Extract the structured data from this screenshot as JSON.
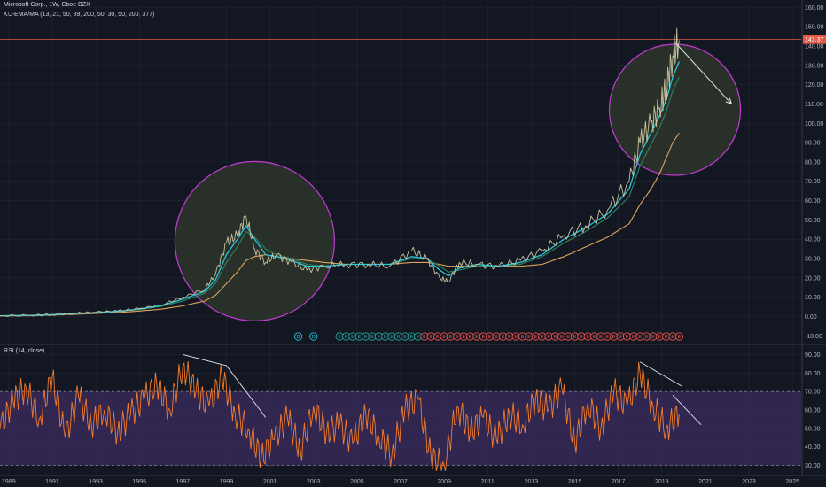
{
  "header": {
    "symbol_line": "Microsoft Corp., 1W, Cboe BZX",
    "indicator_line": "KC-EMA/MA (13, 21, 50, 89, 200, 50, 30, 50, 200, 377)",
    "rsi_label": "RSI (14, close)"
  },
  "colors": {
    "background": "#131722",
    "price": "#c7c2a0",
    "ema_fast": "#26c6da",
    "ema_mid": "#2e7d5b",
    "ma_slow": "#e0a35a",
    "circle_stroke": "#c23bd4",
    "circle_fill": "#3a4530",
    "rsi_line": "#f57c2a",
    "rsi_band": "#3a2a5c",
    "price_line": "#e05a45",
    "arrow": "#e8e8e8"
  },
  "chart_data": [
    {
      "type": "line",
      "panel": "price",
      "title": "Microsoft Corp., 1W, Cboe BZX",
      "last_price_label": "143.37",
      "last_price": 143.37,
      "ylim": [
        -14,
        162
      ],
      "y_ticks": [
        "160.00",
        "150.00",
        "140.00",
        "130.00",
        "120.00",
        "110.00",
        "100.00",
        "90.00",
        "80.00",
        "70.00",
        "60.00",
        "50.00",
        "40.00",
        "30.00",
        "20.00",
        "10.00",
        "0.00",
        "-10.00"
      ],
      "x": [
        1988.6,
        1990,
        1991,
        1992,
        1993,
        1994,
        1995,
        1996,
        1997,
        1998,
        1998.5,
        1999,
        1999.5,
        1999.9,
        2000.3,
        2000.8,
        2001.3,
        2002,
        2002.7,
        2003.5,
        2004.5,
        2005.5,
        2006.5,
        2007.5,
        2008.2,
        2008.8,
        2009.2,
        2009.7,
        2010.5,
        2011.5,
        2012.5,
        2013.5,
        2014.5,
        2015.5,
        2016.5,
        2017.5,
        2018,
        2018.5,
        2018.9,
        2019.2,
        2019.5,
        2019.8
      ],
      "series": [
        {
          "role": "price",
          "values": [
            0.4,
            0.6,
            1,
            1.6,
            2.2,
            2.8,
            4,
            6,
            10,
            14,
            22,
            38,
            42,
            52,
            35,
            28,
            32,
            28,
            24,
            26,
            27,
            27,
            26,
            34,
            30,
            20,
            18,
            28,
            27,
            26,
            29,
            34,
            42,
            47,
            55,
            70,
            90,
            100,
            108,
            118,
            135,
            143
          ]
        },
        {
          "role": "ema_fast",
          "values": [
            0.4,
            0.6,
            1,
            1.5,
            2.1,
            2.7,
            3.8,
            5.6,
            9,
            13,
            19,
            32,
            40,
            47,
            40,
            32,
            31,
            29,
            26,
            26,
            27,
            27,
            27,
            31,
            30,
            24,
            21,
            25,
            27,
            26,
            28,
            32,
            40,
            46,
            53,
            66,
            84,
            95,
            104,
            112,
            124,
            132
          ]
        },
        {
          "role": "ema_mid",
          "values": [
            0.4,
            0.5,
            0.9,
            1.4,
            2,
            2.6,
            3.6,
            5.2,
            8,
            12,
            17,
            28,
            36,
            44,
            41,
            35,
            32,
            30,
            27,
            26,
            27,
            27,
            27,
            30,
            30,
            26,
            23,
            24,
            26,
            26,
            27,
            31,
            38,
            44,
            51,
            62,
            78,
            89,
            98,
            106,
            117,
            124
          ]
        },
        {
          "role": "ma_slow",
          "values": [
            0.3,
            0.4,
            0.7,
            1.1,
            1.6,
            2.1,
            2.8,
            3.8,
            5.5,
            8,
            11,
            17,
            23,
            29,
            31,
            32,
            31,
            30,
            29,
            28,
            27,
            27,
            27,
            28,
            28,
            27,
            26,
            26,
            26,
            26,
            26,
            27,
            31,
            36,
            41,
            48,
            58,
            66,
            74,
            82,
            90,
            95
          ]
        }
      ],
      "annotations": [
        {
          "type": "circle",
          "center": [
            2000.3,
            39
          ],
          "label": ""
        },
        {
          "type": "circle",
          "center": [
            2019.6,
            107
          ],
          "label": ""
        },
        {
          "type": "arrow",
          "from": [
            2019.6,
            142
          ],
          "to": [
            2022.2,
            110
          ]
        }
      ],
      "event_markers": {
        "dividend_label": "D",
        "earnings_label": "E",
        "dividend_x": [
          2002.3,
          2003.0
        ],
        "teal_x": [
          2004.2,
          2004.5,
          2004.8,
          2005.1,
          2005.4,
          2005.7,
          2006.0,
          2006.3,
          2006.6,
          2006.9,
          2007.2,
          2007.5,
          2007.8
        ],
        "red_x": [
          2008.1,
          2008.4,
          2008.7,
          2009.0,
          2009.3,
          2009.6,
          2009.9,
          2010.2,
          2010.5,
          2010.8,
          2011.1,
          2011.4,
          2011.7,
          2012.0,
          2012.3,
          2012.6,
          2012.9,
          2013.2,
          2013.5,
          2013.8,
          2014.1,
          2014.4,
          2014.7,
          2015.0,
          2015.3,
          2015.6,
          2015.9,
          2016.2,
          2016.5,
          2016.8,
          2017.1,
          2017.4,
          2017.7,
          2018.0,
          2018.3,
          2018.6,
          2018.9,
          2019.2,
          2019.5,
          2019.8
        ]
      }
    },
    {
      "type": "line",
      "panel": "rsi",
      "title": "RSI (14, close)",
      "ylim": [
        25,
        95
      ],
      "y_ticks": [
        "90.00",
        "80.00",
        "70.00",
        "60.00",
        "50.00",
        "40.00",
        "30.00"
      ],
      "bands": [
        30,
        70
      ],
      "x": [
        1988.6,
        1989.2,
        1989.8,
        1990.4,
        1991,
        1991.6,
        1992.2,
        1992.8,
        1993.4,
        1994,
        1994.6,
        1995.2,
        1995.8,
        1996.4,
        1997,
        1997.6,
        1998.2,
        1998.8,
        1999.4,
        2000,
        2000.6,
        2001.2,
        2001.8,
        2002.4,
        2003,
        2003.6,
        2004.2,
        2004.8,
        2005.4,
        2006,
        2006.6,
        2007.2,
        2007.8,
        2008.4,
        2009,
        2009.6,
        2010.2,
        2010.8,
        2011.4,
        2012,
        2012.6,
        2013.2,
        2013.8,
        2014.4,
        2015,
        2015.6,
        2016.2,
        2016.8,
        2017.4,
        2018,
        2018.6,
        2019.2,
        2019.8
      ],
      "series": [
        {
          "role": "rsi",
          "values": [
            50,
            65,
            72,
            55,
            78,
            45,
            68,
            52,
            60,
            48,
            58,
            66,
            74,
            60,
            84,
            70,
            62,
            78,
            58,
            50,
            34,
            44,
            56,
            38,
            62,
            48,
            52,
            42,
            58,
            46,
            36,
            60,
            66,
            34,
            30,
            62,
            48,
            56,
            44,
            58,
            52,
            66,
            60,
            72,
            42,
            64,
            50,
            70,
            62,
            80,
            62,
            50,
            58
          ]
        }
      ],
      "annotations": [
        {
          "type": "trendline",
          "from": [
            1997.0,
            90
          ],
          "to": [
            1999.0,
            84
          ]
        },
        {
          "type": "trendline",
          "from": [
            1999.0,
            84
          ],
          "to": [
            2000.8,
            56
          ]
        },
        {
          "type": "trendline",
          "from": [
            2018.0,
            86
          ],
          "to": [
            2019.9,
            73
          ]
        },
        {
          "type": "trendline",
          "from": [
            2019.5,
            68
          ],
          "to": [
            2020.8,
            52
          ]
        }
      ]
    }
  ],
  "x_axis": {
    "labels": [
      "1989",
      "1991",
      "1993",
      "1995",
      "1997",
      "1999",
      "2001",
      "2003",
      "2005",
      "2007",
      "2009",
      "2011",
      "2013",
      "2015",
      "2017",
      "2019",
      "2021",
      "2023",
      "2025"
    ],
    "values": [
      1989,
      1991,
      1993,
      1995,
      1997,
      1999,
      2001,
      2003,
      2005,
      2007,
      2009,
      2011,
      2013,
      2015,
      2017,
      2019,
      2021,
      2023,
      2025
    ],
    "range": [
      1988.6,
      2025.4
    ]
  }
}
